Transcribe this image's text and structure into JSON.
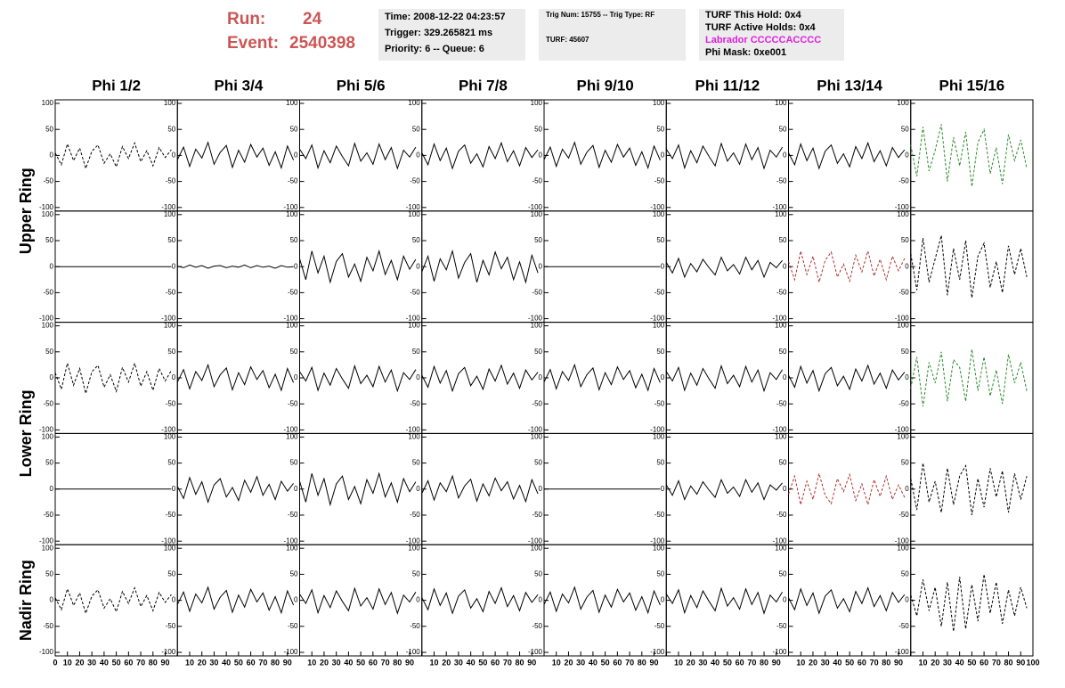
{
  "header": {
    "run_label": "Run:",
    "run": "24",
    "event_label": "Event:",
    "event": "2540398",
    "box1": [
      "Time: 2008-12-22 04:23:57",
      "Trigger: 329.265821 ms",
      "Priority: 6 -- Queue: 6"
    ],
    "box2": [
      "Trig Num: 15755 -- Trig Type: RF",
      "TURF: 45607"
    ],
    "box3": [
      "TURF This Hold: 0x4",
      "TURF Active Holds: 0x4",
      "Labrador CCCCCACCCC",
      "Phi Mask: 0xe001"
    ]
  },
  "chart_data": {
    "type": "line",
    "columns": [
      "Phi 1/2",
      "Phi 3/4",
      "Phi 5/6",
      "Phi 7/8",
      "Phi 9/10",
      "Phi 11/12",
      "Phi 13/14",
      "Phi 15/16"
    ],
    "row_labels": [
      "Upper Ring",
      "Lower Ring",
      "Nadir Ring"
    ],
    "xlim": [
      0,
      100
    ],
    "xticks": [
      0,
      10,
      20,
      30,
      40,
      50,
      60,
      70,
      80,
      90,
      100
    ],
    "ylim": [
      -100,
      100
    ],
    "yticks": [
      100,
      50,
      0,
      -50,
      -100
    ],
    "x": [
      0,
      5,
      10,
      15,
      20,
      25,
      30,
      35,
      40,
      45,
      50,
      55,
      60,
      65,
      70,
      75,
      80,
      85,
      90,
      95
    ],
    "panels": [
      [
        {
          "color": "#000000",
          "dashed": true,
          "values": [
            5,
            -18,
            22,
            -10,
            14,
            -25,
            8,
            20,
            -15,
            3,
            -22,
            17,
            -6,
            24,
            -12,
            9,
            -20,
            15,
            -4,
            11
          ]
        },
        {
          "color": "#000000",
          "dashed": false,
          "values": [
            -8,
            16,
            -21,
            12,
            -5,
            25,
            -17,
            6,
            19,
            -23,
            10,
            -13,
            21,
            -3,
            14,
            -19,
            7,
            -24,
            18,
            -9
          ]
        },
        {
          "color": "#000000",
          "dashed": false,
          "values": [
            12,
            -6,
            20,
            -24,
            9,
            -14,
            18,
            -2,
            -20,
            23,
            -11,
            5,
            -17,
            22,
            -8,
            15,
            -25,
            10,
            -3,
            16
          ]
        },
        {
          "color": "#000000",
          "dashed": false,
          "values": [
            5,
            -18,
            22,
            -10,
            14,
            -25,
            8,
            20,
            -15,
            3,
            -22,
            17,
            -6,
            24,
            -12,
            9,
            -20,
            15,
            -4,
            11
          ]
        },
        {
          "color": "#000000",
          "dashed": false,
          "values": [
            -8,
            16,
            -21,
            12,
            -5,
            25,
            -17,
            6,
            19,
            -23,
            10,
            -13,
            21,
            -3,
            14,
            -19,
            7,
            -24,
            18,
            -9
          ]
        },
        {
          "color": "#000000",
          "dashed": false,
          "values": [
            12,
            -6,
            20,
            -24,
            9,
            -14,
            18,
            -2,
            -20,
            23,
            -11,
            5,
            -17,
            22,
            -8,
            15,
            -25,
            10,
            -3,
            16
          ]
        },
        {
          "color": "#000000",
          "dashed": false,
          "values": [
            5,
            -18,
            22,
            -10,
            14,
            -25,
            8,
            20,
            -15,
            3,
            -22,
            17,
            -6,
            24,
            -12,
            9,
            -20,
            15,
            -4,
            11
          ]
        },
        {
          "color": "#2a8a2a",
          "dashed": true,
          "values": [
            20,
            -40,
            55,
            -30,
            10,
            60,
            -50,
            35,
            -20,
            45,
            -60,
            25,
            50,
            -35,
            15,
            -55,
            40,
            -10,
            30,
            -25
          ]
        }
      ],
      [
        {
          "color": "#000000",
          "dashed": false,
          "values": [
            0,
            0,
            0,
            0,
            0,
            0,
            0,
            0,
            0,
            0,
            0,
            0,
            0,
            0,
            0,
            0,
            0,
            0,
            0,
            0
          ]
        },
        {
          "color": "#000000",
          "dashed": false,
          "values": [
            1,
            -2,
            3,
            -1,
            2,
            -3,
            1,
            2,
            -2,
            1,
            -1,
            3,
            -2,
            2,
            -1,
            1,
            -3,
            2,
            -1,
            0
          ]
        },
        {
          "color": "#000000",
          "dashed": false,
          "values": [
            15,
            -25,
            30,
            -12,
            20,
            -30,
            10,
            25,
            -20,
            5,
            -28,
            18,
            -8,
            30,
            -15,
            12,
            -25,
            20,
            -5,
            14
          ]
        },
        {
          "color": "#000000",
          "dashed": false,
          "values": [
            -10,
            20,
            -28,
            15,
            -6,
            30,
            -22,
            8,
            25,
            -30,
            12,
            -16,
            28,
            -4,
            18,
            -25,
            9,
            -30,
            22,
            -12
          ]
        },
        {
          "color": "#000000",
          "dashed": false,
          "values": [
            0,
            0,
            0,
            0,
            0,
            0,
            0,
            0,
            0,
            0,
            0,
            0,
            0,
            0,
            0,
            0,
            0,
            0,
            0,
            0
          ]
        },
        {
          "color": "#000000",
          "dashed": false,
          "values": [
            8,
            -12,
            16,
            -20,
            6,
            -10,
            14,
            -2,
            -16,
            18,
            -8,
            4,
            -14,
            18,
            -6,
            12,
            -20,
            8,
            -2,
            12
          ]
        },
        {
          "color": "#b03030",
          "dashed": true,
          "values": [
            10,
            -25,
            30,
            -15,
            20,
            -30,
            12,
            28,
            -20,
            5,
            -28,
            22,
            -10,
            30,
            -18,
            14,
            -25,
            20,
            -8,
            16
          ]
        },
        {
          "color": "#000000",
          "dashed": true,
          "values": [
            25,
            -45,
            55,
            -30,
            15,
            60,
            -55,
            35,
            -25,
            50,
            -60,
            20,
            45,
            -40,
            10,
            -50,
            40,
            -15,
            35,
            -20
          ]
        }
      ],
      [
        {
          "color": "#000000",
          "dashed": true,
          "values": [
            10,
            -22,
            28,
            -14,
            18,
            -30,
            12,
            24,
            -18,
            6,
            -26,
            20,
            -8,
            28,
            -16,
            12,
            -24,
            18,
            -6,
            14
          ]
        },
        {
          "color": "#000000",
          "dashed": false,
          "values": [
            -8,
            16,
            -21,
            12,
            -5,
            25,
            -17,
            6,
            19,
            -23,
            10,
            -13,
            21,
            -3,
            14,
            -19,
            7,
            -24,
            18,
            -9
          ]
        },
        {
          "color": "#000000",
          "dashed": false,
          "values": [
            12,
            -6,
            20,
            -24,
            9,
            -14,
            18,
            -2,
            -20,
            23,
            -11,
            5,
            -17,
            22,
            -8,
            15,
            -25,
            10,
            -3,
            16
          ]
        },
        {
          "color": "#000000",
          "dashed": false,
          "values": [
            5,
            -18,
            22,
            -10,
            14,
            -25,
            8,
            20,
            -15,
            3,
            -22,
            17,
            -6,
            24,
            -12,
            9,
            -20,
            15,
            -4,
            11
          ]
        },
        {
          "color": "#000000",
          "dashed": false,
          "values": [
            -8,
            16,
            -21,
            12,
            -5,
            25,
            -17,
            6,
            19,
            -23,
            10,
            -13,
            21,
            -3,
            14,
            -19,
            7,
            -24,
            18,
            -9
          ]
        },
        {
          "color": "#000000",
          "dashed": false,
          "values": [
            12,
            -6,
            20,
            -24,
            9,
            -14,
            18,
            -2,
            -20,
            23,
            -11,
            5,
            -17,
            22,
            -8,
            15,
            -25,
            10,
            -3,
            16
          ]
        },
        {
          "color": "#000000",
          "dashed": false,
          "values": [
            5,
            -18,
            22,
            -10,
            14,
            -25,
            8,
            20,
            -15,
            3,
            -22,
            17,
            -6,
            24,
            -12,
            9,
            -20,
            15,
            -4,
            11
          ]
        },
        {
          "color": "#2a8a2a",
          "dashed": true,
          "values": [
            -20,
            40,
            -55,
            30,
            -10,
            50,
            -45,
            35,
            20,
            -45,
            55,
            -25,
            40,
            -35,
            15,
            -50,
            45,
            -10,
            30,
            -25
          ]
        }
      ],
      [
        {
          "color": "#000000",
          "dashed": false,
          "values": [
            0,
            0,
            0,
            0,
            0,
            0,
            0,
            0,
            0,
            0,
            0,
            0,
            0,
            0,
            0,
            0,
            0,
            0,
            0,
            0
          ]
        },
        {
          "color": "#000000",
          "dashed": false,
          "values": [
            5,
            -18,
            22,
            -10,
            14,
            -25,
            8,
            20,
            -15,
            3,
            -22,
            17,
            -6,
            24,
            -12,
            9,
            -20,
            15,
            -4,
            11
          ]
        },
        {
          "color": "#000000",
          "dashed": false,
          "values": [
            15,
            -25,
            30,
            -12,
            20,
            -30,
            10,
            25,
            -20,
            5,
            -28,
            18,
            -8,
            30,
            -15,
            12,
            -25,
            20,
            -5,
            14
          ]
        },
        {
          "color": "#000000",
          "dashed": false,
          "values": [
            -8,
            16,
            -21,
            12,
            -5,
            25,
            -17,
            6,
            19,
            -23,
            10,
            -13,
            21,
            -3,
            14,
            -19,
            7,
            -24,
            18,
            -9
          ]
        },
        {
          "color": "#000000",
          "dashed": false,
          "values": [
            0,
            0,
            0,
            0,
            0,
            0,
            0,
            0,
            0,
            0,
            0,
            0,
            0,
            0,
            0,
            0,
            0,
            0,
            0,
            0
          ]
        },
        {
          "color": "#000000",
          "dashed": false,
          "values": [
            8,
            -12,
            16,
            -20,
            6,
            -10,
            14,
            -2,
            -16,
            18,
            -8,
            4,
            -14,
            18,
            -6,
            12,
            -20,
            8,
            -2,
            12
          ]
        },
        {
          "color": "#b03030",
          "dashed": true,
          "values": [
            -10,
            25,
            -30,
            15,
            -20,
            30,
            -12,
            -28,
            20,
            -5,
            28,
            -22,
            10,
            -30,
            18,
            -14,
            25,
            -20,
            8,
            -16
          ]
        },
        {
          "color": "#000000",
          "dashed": true,
          "values": [
            20,
            -40,
            50,
            -25,
            15,
            -45,
            40,
            -30,
            25,
            45,
            -50,
            20,
            -35,
            40,
            -15,
            35,
            -45,
            30,
            -20,
            25
          ]
        }
      ],
      [
        {
          "color": "#000000",
          "dashed": true,
          "values": [
            5,
            -18,
            22,
            -10,
            14,
            -25,
            8,
            20,
            -15,
            3,
            -22,
            17,
            -6,
            24,
            -12,
            9,
            -20,
            15,
            -4,
            11
          ]
        },
        {
          "color": "#000000",
          "dashed": false,
          "values": [
            -8,
            16,
            -21,
            12,
            -5,
            25,
            -17,
            6,
            19,
            -23,
            10,
            -13,
            21,
            -3,
            14,
            -19,
            7,
            -24,
            18,
            -9
          ]
        },
        {
          "color": "#000000",
          "dashed": false,
          "values": [
            12,
            -6,
            20,
            -24,
            9,
            -14,
            18,
            -2,
            -20,
            23,
            -11,
            5,
            -17,
            22,
            -8,
            15,
            -25,
            10,
            -3,
            16
          ]
        },
        {
          "color": "#000000",
          "dashed": false,
          "values": [
            5,
            -18,
            22,
            -10,
            14,
            -25,
            8,
            20,
            -15,
            3,
            -22,
            17,
            -6,
            24,
            -12,
            9,
            -20,
            15,
            -4,
            11
          ]
        },
        {
          "color": "#000000",
          "dashed": false,
          "values": [
            -8,
            16,
            -21,
            12,
            -5,
            25,
            -17,
            6,
            19,
            -23,
            10,
            -13,
            21,
            -3,
            14,
            -19,
            7,
            -24,
            18,
            -9
          ]
        },
        {
          "color": "#000000",
          "dashed": false,
          "values": [
            12,
            -6,
            20,
            -24,
            9,
            -14,
            18,
            -2,
            -20,
            23,
            -11,
            5,
            -17,
            22,
            -8,
            15,
            -25,
            10,
            -3,
            16
          ]
        },
        {
          "color": "#000000",
          "dashed": false,
          "values": [
            5,
            -18,
            22,
            -10,
            14,
            -25,
            8,
            20,
            -15,
            3,
            -22,
            17,
            -6,
            24,
            -12,
            9,
            -20,
            15,
            -4,
            11
          ]
        },
        {
          "color": "#000000",
          "dashed": true,
          "values": [
            10,
            -30,
            40,
            -20,
            25,
            -50,
            35,
            -60,
            45,
            -55,
            30,
            -40,
            50,
            -25,
            35,
            -45,
            20,
            -30,
            25,
            -15
          ]
        }
      ]
    ]
  }
}
